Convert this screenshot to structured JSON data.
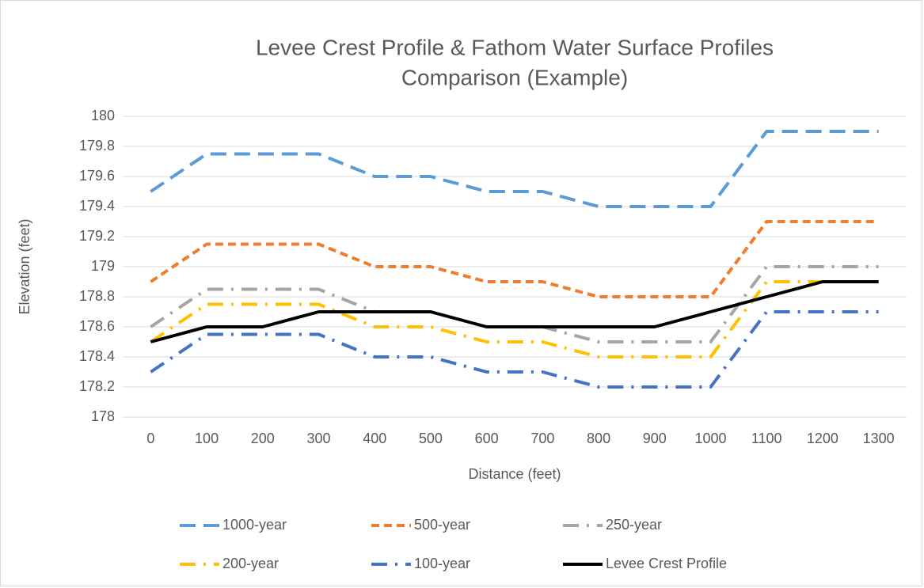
{
  "chart_data": {
    "type": "line",
    "title": [
      "Levee Crest Profile & Fathom Water Surface Profiles",
      "Comparison (Example)"
    ],
    "x_label": "Distance (feet)",
    "y_label": "Elevation (feet)",
    "categories": [
      "0",
      "100",
      "200",
      "300",
      "400",
      "500",
      "600",
      "700",
      "800",
      "900",
      "1000",
      "1100",
      "1200",
      "1300"
    ],
    "series": [
      {
        "name": "1000-year",
        "color": "#5b9bd5",
        "dash": "long-dash",
        "values": [
          179.5,
          179.75,
          179.75,
          179.75,
          179.6,
          179.6,
          179.5,
          179.5,
          179.4,
          179.4,
          179.4,
          179.9,
          179.9,
          179.9
        ]
      },
      {
        "name": "500-year",
        "color": "#ed7d31",
        "dash": "dash",
        "values": [
          178.9,
          179.15,
          179.15,
          179.15,
          179.0,
          179.0,
          178.9,
          178.9,
          178.8,
          178.8,
          178.8,
          179.3,
          179.3,
          179.3
        ]
      },
      {
        "name": "250-year",
        "color": "#a5a5a5",
        "dash": "long-dash-dot",
        "values": [
          178.6,
          178.85,
          178.85,
          178.85,
          178.7,
          178.7,
          178.6,
          178.6,
          178.5,
          178.5,
          178.5,
          179.0,
          179.0,
          179.0
        ]
      },
      {
        "name": "200-year",
        "color": "#ffc000",
        "dash": "long-dash-dot",
        "values": [
          178.5,
          178.75,
          178.75,
          178.75,
          178.6,
          178.6,
          178.5,
          178.5,
          178.4,
          178.4,
          178.4,
          178.9,
          178.9,
          178.9
        ]
      },
      {
        "name": "100-year",
        "color": "#4472c4",
        "dash": "long-dash-dot",
        "values": [
          178.3,
          178.55,
          178.55,
          178.55,
          178.4,
          178.4,
          178.3,
          178.3,
          178.2,
          178.2,
          178.2,
          178.7,
          178.7,
          178.7
        ]
      },
      {
        "name": "Levee Crest Profile",
        "color": "#000000",
        "dash": "solid",
        "values": [
          178.5,
          178.6,
          178.6,
          178.7,
          178.7,
          178.7,
          178.6,
          178.6,
          178.6,
          178.6,
          178.7,
          178.8,
          178.9,
          178.9
        ]
      }
    ],
    "ylim": [
      178,
      180
    ],
    "yticks": [
      178,
      178.2,
      178.4,
      178.6,
      178.8,
      179,
      179.2,
      179.4,
      179.6,
      179.8,
      180
    ],
    "grid": true
  }
}
